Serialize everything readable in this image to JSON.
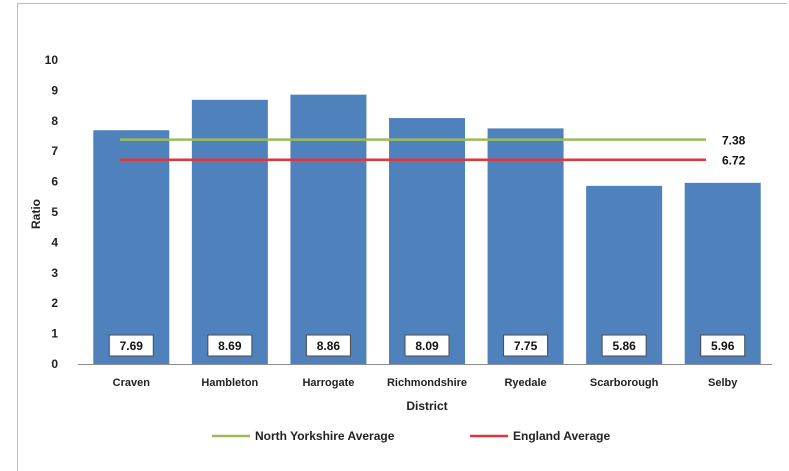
{
  "chart_data": {
    "type": "bar",
    "categories": [
      "Craven",
      "Hambleton",
      "Harrogate",
      "Richmondshire",
      "Ryedale",
      "Scarborough",
      "Selby"
    ],
    "values": [
      7.69,
      8.69,
      8.86,
      8.09,
      7.75,
      5.86,
      5.96
    ],
    "value_labels": [
      "7.69",
      "8.69",
      "8.86",
      "8.09",
      "7.75",
      "5.86",
      "5.96"
    ],
    "bar_color": "#4f81bd",
    "xlabel": "District",
    "ylabel": "Ratio",
    "ylim": [
      0,
      10
    ],
    "yticks": [
      "0",
      "1",
      "2",
      "3",
      "4",
      "5",
      "6",
      "7",
      "8",
      "9",
      "10"
    ],
    "grid": false,
    "reference_lines": [
      {
        "name": "North Yorkshire Average",
        "value": 7.38,
        "label": "7.38",
        "color": "#9bbb59"
      },
      {
        "name": "England Average",
        "value": 6.72,
        "label": "6.72",
        "color": "#e0363c"
      }
    ],
    "legend_position": "bottom"
  }
}
